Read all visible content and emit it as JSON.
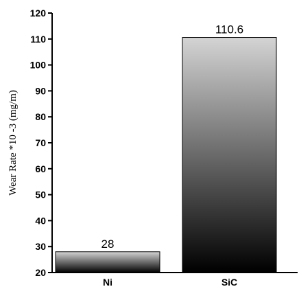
{
  "chart_data": {
    "type": "bar",
    "categories": [
      "Ni",
      "SiC"
    ],
    "values": [
      28,
      110.6
    ],
    "data_labels": [
      "28",
      "110.6"
    ],
    "title": "",
    "xlabel": "",
    "ylabel": "Wear Rate *10 -3 (mg/m)",
    "ylim": [
      20,
      120
    ],
    "yticks": [
      20,
      30,
      40,
      50,
      60,
      70,
      80,
      90,
      100,
      110,
      120
    ],
    "grid": false,
    "bar_fill": "vertical gradient, light gray top to black bottom",
    "colors": {
      "bar_top": "#d4d4d4",
      "bar_bottom": "#000000",
      "axis": "#000000"
    }
  }
}
